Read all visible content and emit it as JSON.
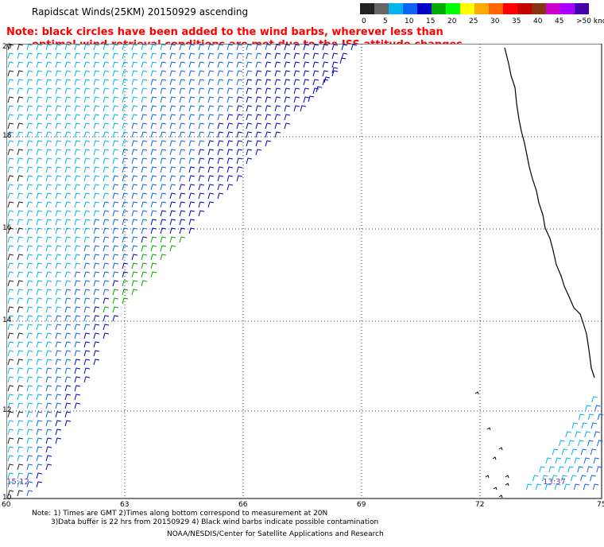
{
  "title": "Rapidscat Winds(25KM) 20150929 ascending",
  "note": {
    "line1": "Note: black circles have been added to the wind barbs, wherever less than",
    "line2": "optimal wind retrieval conditions are met due to the ISS attitude changes."
  },
  "legend": {
    "colors": [
      "#222222",
      "#666666",
      "#00b4f0",
      "#0a64f0",
      "#0000c8",
      "#00aa00",
      "#00ff00",
      "#ffff00",
      "#ffaa00",
      "#ff6600",
      "#ff0000",
      "#c80000",
      "#883311",
      "#cc00cc",
      "#aa00ff",
      "#4400aa"
    ],
    "labels": [
      "0",
      "5",
      "10",
      "15",
      "20",
      "25",
      "30",
      "35",
      "40",
      "45",
      ">50 knots"
    ]
  },
  "map": {
    "lat_labels": [
      "20",
      "18",
      "16",
      "14",
      "12",
      "10"
    ],
    "lon_labels": [
      "60",
      "63",
      "66",
      "69",
      "72",
      "75"
    ],
    "time_left": "15:12",
    "time_right": "13:37",
    "icons": {
      "barb": "wind-barb-icon"
    }
  },
  "footer": {
    "line1": "Note: 1) Times are GMT 2)Times along bottom correspond to measurement at 20N",
    "line2": "3)Data buffer is 22 hrs from 20150929 4) Black wind barbs indicate possible contamination",
    "credit": "NOAA/NESDIS/Center for Satellite Applications and Research"
  }
}
